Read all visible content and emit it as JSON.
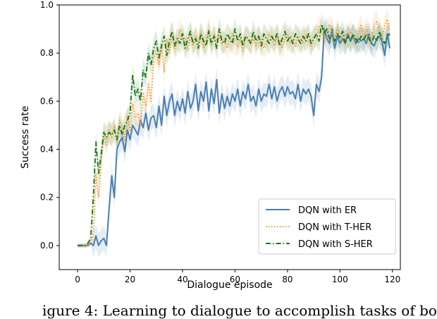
{
  "chart_data": {
    "type": "line",
    "title": "",
    "xlabel": "Dialogue episode",
    "ylabel": "Success rate",
    "xlim": [
      -7,
      123
    ],
    "ylim": [
      -0.1,
      1.0
    ],
    "xticks": [
      "0",
      "20",
      "40",
      "60",
      "80",
      "100",
      "120"
    ],
    "yticks": [
      "0.0",
      "0.2",
      "0.4",
      "0.6",
      "0.8",
      "1.0"
    ],
    "grid": false,
    "legend_position": "lower-right",
    "series": [
      {
        "name": "DQN with ER",
        "color": "#4a7fb4",
        "style": "solid",
        "band": true,
        "x": [
          0,
          1,
          2,
          3,
          4,
          5,
          6,
          7,
          8,
          9,
          10,
          11,
          12,
          13,
          14,
          15,
          16,
          17,
          18,
          19,
          20,
          21,
          22,
          23,
          24,
          25,
          26,
          27,
          28,
          29,
          30,
          31,
          32,
          33,
          34,
          35,
          36,
          37,
          38,
          39,
          40,
          41,
          42,
          43,
          44,
          45,
          46,
          47,
          48,
          49,
          50,
          51,
          52,
          53,
          54,
          55,
          56,
          57,
          58,
          59,
          60,
          61,
          62,
          63,
          64,
          65,
          66,
          67,
          68,
          69,
          70,
          71,
          72,
          73,
          74,
          75,
          76,
          77,
          78,
          79,
          80,
          81,
          82,
          83,
          84,
          85,
          86,
          87,
          88,
          89,
          90,
          91,
          92,
          93,
          94,
          95,
          96,
          97,
          98,
          99,
          100,
          101,
          102,
          103,
          104,
          105,
          106,
          107,
          108,
          109,
          110,
          111,
          112,
          113,
          114,
          115,
          116,
          117,
          118,
          119
        ],
        "values": [
          0.0,
          0.0,
          0.0,
          0.0,
          0.0,
          0.01,
          0.0,
          0.04,
          0.0,
          0.02,
          0.03,
          0.0,
          0.15,
          0.29,
          0.2,
          0.4,
          0.43,
          0.45,
          0.39,
          0.48,
          0.44,
          0.5,
          0.48,
          0.46,
          0.52,
          0.49,
          0.55,
          0.48,
          0.53,
          0.54,
          0.49,
          0.58,
          0.5,
          0.62,
          0.54,
          0.6,
          0.63,
          0.54,
          0.6,
          0.56,
          0.61,
          0.55,
          0.64,
          0.57,
          0.6,
          0.67,
          0.56,
          0.64,
          0.6,
          0.68,
          0.56,
          0.65,
          0.59,
          0.69,
          0.55,
          0.63,
          0.57,
          0.62,
          0.58,
          0.63,
          0.6,
          0.65,
          0.58,
          0.64,
          0.61,
          0.67,
          0.6,
          0.62,
          0.58,
          0.65,
          0.6,
          0.63,
          0.62,
          0.67,
          0.61,
          0.66,
          0.6,
          0.64,
          0.66,
          0.62,
          0.66,
          0.63,
          0.64,
          0.61,
          0.67,
          0.6,
          0.65,
          0.63,
          0.65,
          0.62,
          0.54,
          0.67,
          0.64,
          0.7,
          0.9,
          0.86,
          0.84,
          0.9,
          0.82,
          0.87,
          0.84,
          0.86,
          0.84,
          0.88,
          0.85,
          0.87,
          0.84,
          0.86,
          0.85,
          0.86,
          0.84,
          0.88,
          0.84,
          0.83,
          0.86,
          0.87,
          0.85,
          0.79,
          0.88,
          0.82
        ]
      },
      {
        "name": "DQN with T-HER",
        "color": "#f39a35",
        "style": "dotted",
        "band": true,
        "x": [
          0,
          1,
          2,
          3,
          4,
          5,
          6,
          7,
          8,
          9,
          10,
          11,
          12,
          13,
          14,
          15,
          16,
          17,
          18,
          19,
          20,
          21,
          22,
          23,
          24,
          25,
          26,
          27,
          28,
          29,
          30,
          31,
          32,
          33,
          34,
          35,
          36,
          37,
          38,
          39,
          40,
          41,
          42,
          43,
          44,
          45,
          46,
          47,
          48,
          49,
          50,
          51,
          52,
          53,
          54,
          55,
          56,
          57,
          58,
          59,
          60,
          61,
          62,
          63,
          64,
          65,
          66,
          67,
          68,
          69,
          70,
          71,
          72,
          73,
          74,
          75,
          76,
          77,
          78,
          79,
          80,
          81,
          82,
          83,
          84,
          85,
          86,
          87,
          88,
          89,
          90,
          91,
          92,
          93,
          94,
          95,
          96,
          97,
          98,
          99,
          100,
          101,
          102,
          103,
          104,
          105,
          106,
          107,
          108,
          109,
          110,
          111,
          112,
          113,
          114,
          115,
          116,
          117,
          118,
          119
        ],
        "values": [
          0.0,
          0.0,
          0.0,
          0.0,
          0.0,
          0.01,
          0.05,
          0.3,
          0.2,
          0.35,
          0.46,
          0.42,
          0.48,
          0.45,
          0.5,
          0.43,
          0.52,
          0.49,
          0.44,
          0.54,
          0.48,
          0.59,
          0.53,
          0.55,
          0.5,
          0.63,
          0.58,
          0.67,
          0.6,
          0.78,
          0.8,
          0.75,
          0.84,
          0.72,
          0.86,
          0.8,
          0.88,
          0.82,
          0.84,
          0.9,
          0.85,
          0.86,
          0.81,
          0.88,
          0.83,
          0.87,
          0.84,
          0.89,
          0.82,
          0.86,
          0.9,
          0.83,
          0.88,
          0.85,
          0.87,
          0.84,
          0.86,
          0.82,
          0.85,
          0.88,
          0.84,
          0.83,
          0.86,
          0.81,
          0.87,
          0.85,
          0.84,
          0.86,
          0.83,
          0.87,
          0.85,
          0.82,
          0.84,
          0.88,
          0.86,
          0.83,
          0.87,
          0.85,
          0.82,
          0.86,
          0.88,
          0.84,
          0.85,
          0.83,
          0.87,
          0.86,
          0.84,
          0.88,
          0.85,
          0.83,
          0.87,
          0.86,
          0.91,
          0.89,
          0.87,
          0.86,
          0.92,
          0.88,
          0.86,
          0.9,
          0.87,
          0.85,
          0.88,
          0.86,
          0.89,
          0.87,
          0.85,
          0.88,
          0.92,
          0.86,
          0.9,
          0.88,
          0.85,
          0.92,
          0.93,
          0.89,
          0.86,
          0.91,
          0.94,
          0.89
        ]
      },
      {
        "name": "DQN with S-HER",
        "color": "#1f7a1f",
        "style": "dashdot",
        "band": true,
        "x": [
          0,
          1,
          2,
          3,
          4,
          5,
          6,
          7,
          8,
          9,
          10,
          11,
          12,
          13,
          14,
          15,
          16,
          17,
          18,
          19,
          20,
          21,
          22,
          23,
          24,
          25,
          26,
          27,
          28,
          29,
          30,
          31,
          32,
          33,
          34,
          35,
          36,
          37,
          38,
          39,
          40,
          41,
          42,
          43,
          44,
          45,
          46,
          47,
          48,
          49,
          50,
          51,
          52,
          53,
          54,
          55,
          56,
          57,
          58,
          59,
          60,
          61,
          62,
          63,
          64,
          65,
          66,
          67,
          68,
          69,
          70,
          71,
          72,
          73,
          74,
          75,
          76,
          77,
          78,
          79,
          80,
          81,
          82,
          83,
          84,
          85,
          86,
          87,
          88,
          89,
          90,
          91,
          92,
          93,
          94,
          95,
          96,
          97,
          98,
          99,
          100,
          101,
          102,
          103,
          104,
          105,
          106,
          107,
          108,
          109,
          110,
          111,
          112,
          113,
          114,
          115,
          116,
          117,
          118,
          119
        ],
        "values": [
          0.0,
          0.0,
          0.0,
          0.0,
          0.01,
          0.03,
          0.2,
          0.43,
          0.3,
          0.38,
          0.47,
          0.45,
          0.47,
          0.46,
          0.48,
          0.44,
          0.5,
          0.46,
          0.5,
          0.52,
          0.55,
          0.71,
          0.62,
          0.65,
          0.6,
          0.73,
          0.7,
          0.8,
          0.75,
          0.82,
          0.85,
          0.78,
          0.83,
          0.87,
          0.79,
          0.85,
          0.89,
          0.83,
          0.86,
          0.84,
          0.88,
          0.82,
          0.86,
          0.89,
          0.84,
          0.86,
          0.82,
          0.88,
          0.85,
          0.83,
          0.89,
          0.84,
          0.87,
          0.82,
          0.9,
          0.85,
          0.84,
          0.88,
          0.86,
          0.84,
          0.9,
          0.85,
          0.88,
          0.83,
          0.87,
          0.86,
          0.84,
          0.89,
          0.85,
          0.87,
          0.83,
          0.88,
          0.86,
          0.84,
          0.87,
          0.85,
          0.88,
          0.83,
          0.86,
          0.89,
          0.85,
          0.87,
          0.84,
          0.88,
          0.86,
          0.84,
          0.87,
          0.85,
          0.88,
          0.84,
          0.86,
          0.88,
          0.85,
          0.92,
          0.88,
          0.9,
          0.86,
          0.87,
          0.85,
          0.88,
          0.86,
          0.89,
          0.84,
          0.87,
          0.85,
          0.88,
          0.86,
          0.84,
          0.87,
          0.85,
          0.88,
          0.86,
          0.84,
          0.87,
          0.85,
          0.89,
          0.86,
          0.84,
          0.87,
          0.88
        ]
      }
    ]
  },
  "caption": "igure 4: Learning to dialogue to accomplish tasks of bo"
}
